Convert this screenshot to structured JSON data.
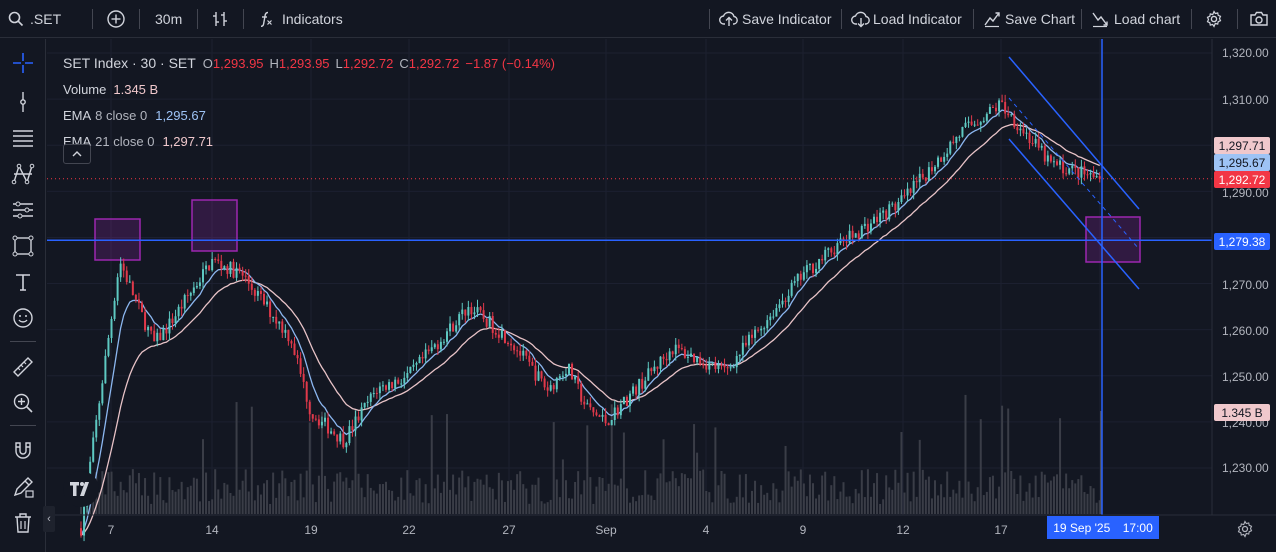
{
  "toolbar": {
    "symbol": ".SET",
    "interval": "30m",
    "indicators_label": "Indicators",
    "save_indicator_label": "Save Indicator",
    "load_indicator_label": "Load Indicator",
    "save_chart_label": "Save Chart",
    "load_chart_label": "Load chart"
  },
  "legend": {
    "title": "SET Index · 30 · SET",
    "o_label": "O",
    "o_value": "1,293.95",
    "h_label": "H",
    "h_value": "1,293.95",
    "l_label": "L",
    "l_value": "1,292.72",
    "c_label": "C",
    "c_value": "1,292.72",
    "change": "−1.87 (−0.14%)",
    "volume_label": "Volume",
    "volume_value": "1.345 B",
    "ema8_label": "EMA",
    "ema8_params": "8 close 0",
    "ema8_value": "1,295.67",
    "ema21_label": "EMA",
    "ema21_params": "21 close 0",
    "ema21_value": "1,297.71"
  },
  "price_axis": {
    "ticks": [
      "1,320.00",
      "1,310.00",
      "1,290.00",
      "1,270.00",
      "1,260.00",
      "1,250.00",
      "1,240.00",
      "1,230.00"
    ],
    "tags": {
      "ema21": "1,297.71",
      "ema8": "1,295.67",
      "last": "1,292.72",
      "hline": "1,279.38",
      "volume": "1.345 B"
    }
  },
  "date_axis": {
    "ticks": [
      "7",
      "14",
      "19",
      "22",
      "27",
      "Sep",
      "4",
      "9",
      "12",
      "17"
    ],
    "crosshair_date": "19 Sep '25",
    "crosshair_time": "17:00"
  },
  "colors": {
    "background": "#131722",
    "up": "#5ec9c2",
    "down": "#e0394a",
    "ema8": "#8cb7f0",
    "ema21": "#e8c3c7",
    "hline": "#2962ff",
    "box": "#9c27b0"
  },
  "icons": {
    "left": [
      "crosshair-icon",
      "trend-line-icon",
      "fib-icon",
      "pattern-icon",
      "prediction-icon",
      "geometric-shapes-icon",
      "text-icon",
      "emoji-icon",
      "ruler-icon",
      "zoom-in-icon",
      "magnet-icon",
      "lock-drawing-icon",
      "delete-icon"
    ]
  },
  "chart_data": {
    "type": "candlestick",
    "interval": "30m",
    "ylim": [
      1222,
      1324
    ],
    "x": [
      "7",
      "14",
      "19",
      "22",
      "27",
      "Sep",
      "4",
      "9",
      "12",
      "17"
    ],
    "close_path_anchors": [
      [
        7,
        1262
      ],
      [
        7.6,
        1275
      ],
      [
        9,
        1264
      ],
      [
        10,
        1257
      ],
      [
        11,
        1261
      ],
      [
        14,
        1275
      ],
      [
        15.5,
        1272
      ],
      [
        18,
        1258
      ],
      [
        19,
        1242
      ],
      [
        20,
        1236
      ],
      [
        21,
        1247
      ],
      [
        22,
        1250
      ],
      [
        25,
        1265
      ],
      [
        27,
        1258
      ],
      [
        29,
        1247
      ],
      [
        30,
        1252
      ],
      [
        31,
        1243
      ],
      [
        1,
        1240
      ],
      [
        3,
        1256
      ],
      [
        5,
        1251
      ],
      [
        9,
        1272
      ],
      [
        10,
        1278
      ],
      [
        12,
        1288
      ],
      [
        15,
        1303
      ],
      [
        17,
        1309
      ],
      [
        18,
        1296
      ],
      [
        19,
        1292.72
      ]
    ],
    "horizontal_line": 1279.38,
    "last_close": 1292.72,
    "ema8_last": 1295.67,
    "ema21_last": 1297.71,
    "volume_last": "1.345 B"
  }
}
